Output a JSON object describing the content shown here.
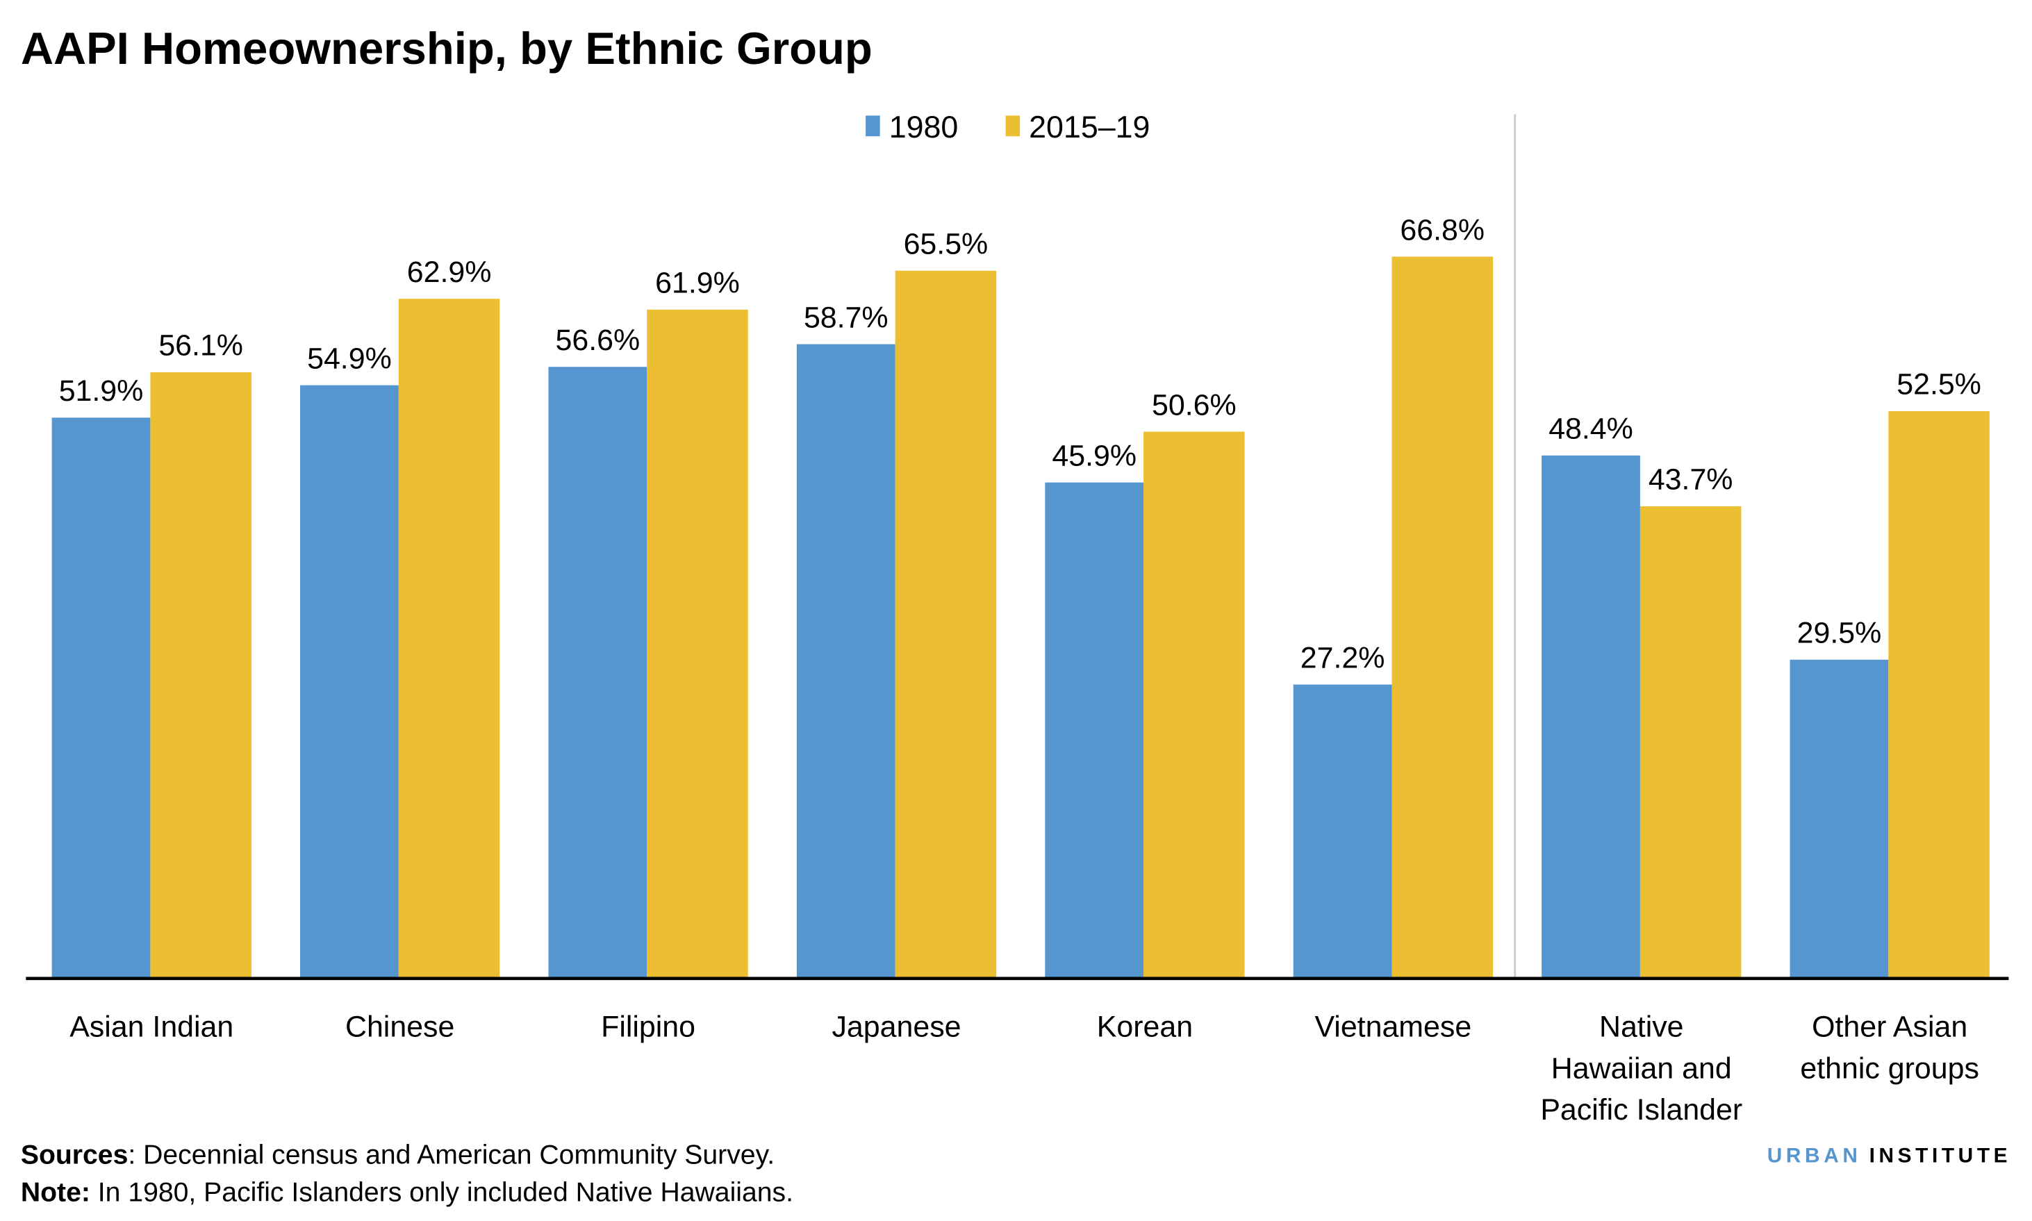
{
  "chart_data": {
    "type": "bar",
    "title": "AAPI Homeownership, by Ethnic Group",
    "categories": [
      [
        "Asian Indian"
      ],
      [
        "Chinese"
      ],
      [
        "Filipino"
      ],
      [
        "Japanese"
      ],
      [
        "Korean"
      ],
      [
        "Vietnamese"
      ],
      [
        "Native",
        "Hawaiian and",
        "Pacific Islander"
      ],
      [
        "Other Asian",
        "ethnic groups"
      ]
    ],
    "series": [
      {
        "name": "1980",
        "color": "#5596d1",
        "values": [
          51.9,
          54.9,
          56.6,
          58.7,
          45.9,
          27.2,
          48.4,
          29.5
        ]
      },
      {
        "name": "2015–19",
        "color": "#ecbe32",
        "values": [
          56.1,
          62.9,
          61.9,
          65.5,
          50.6,
          66.8,
          43.7,
          52.5
        ]
      }
    ],
    "value_suffix": "%",
    "ylim": [
      0,
      90
    ],
    "xlabel": "",
    "ylabel": "",
    "grid": false,
    "legend_position": "top-center",
    "separator_after_category_index": 5
  },
  "footer": {
    "sources_label": "Sources",
    "sources_text": ": Decennial census and American Community Survey.",
    "note_label": "Note:",
    "note_text": " In 1980, Pacific Islanders only included Native Hawaiians."
  },
  "logo": {
    "part1": "URBAN",
    "part2": "INSTITUTE",
    "color1": "#5596d1",
    "color2": "#000000"
  }
}
